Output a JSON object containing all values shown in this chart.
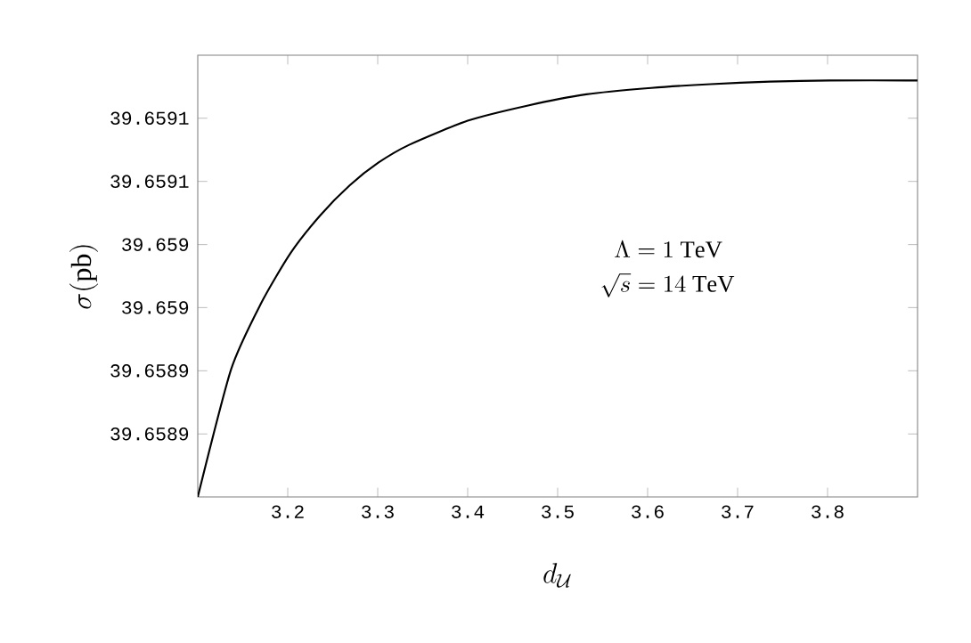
{
  "chart_data": {
    "type": "line",
    "xlabel": "d_{\\mathcal{U}}",
    "ylabel": "\\sigma(\\mathrm{pb})",
    "annotations": [
      "\\Lambda = 1\\ \\mathrm{TeV}",
      "\\sqrt{s} = 14\\ \\mathrm{TeV}"
    ],
    "x": [
      3.1,
      3.137,
      3.17,
      3.203,
      3.236,
      3.269,
      3.301,
      3.335,
      3.4,
      3.466,
      3.532,
      3.604,
      3.67,
      3.736,
      3.802,
      3.9
    ],
    "series": [
      {
        "color": "#000000",
        "values": [
          39.6588,
          39.658901,
          39.658953,
          39.658993,
          39.659023,
          39.659047,
          39.659065,
          39.659079,
          39.659098,
          39.65911,
          39.659119,
          39.659124,
          39.659127,
          39.659129,
          39.65913,
          39.65913
        ]
      }
    ],
    "xlim": [
      3.1,
      3.9
    ],
    "ylim": [
      39.6588,
      39.65915
    ],
    "xticks": [
      3.2,
      3.3,
      3.4,
      3.5,
      3.6,
      3.7,
      3.8
    ],
    "yticks": [
      {
        "value": 39.65885,
        "label": "39.6589"
      },
      {
        "value": 39.6589,
        "label": "39.6589"
      },
      {
        "value": 39.65895,
        "label": "39.659"
      },
      {
        "value": 39.659,
        "label": "39.659"
      },
      {
        "value": 39.65905,
        "label": "39.6591"
      },
      {
        "value": 39.6591,
        "label": "39.6591"
      }
    ],
    "grid": false,
    "marker": "none",
    "line_style": "solid"
  }
}
